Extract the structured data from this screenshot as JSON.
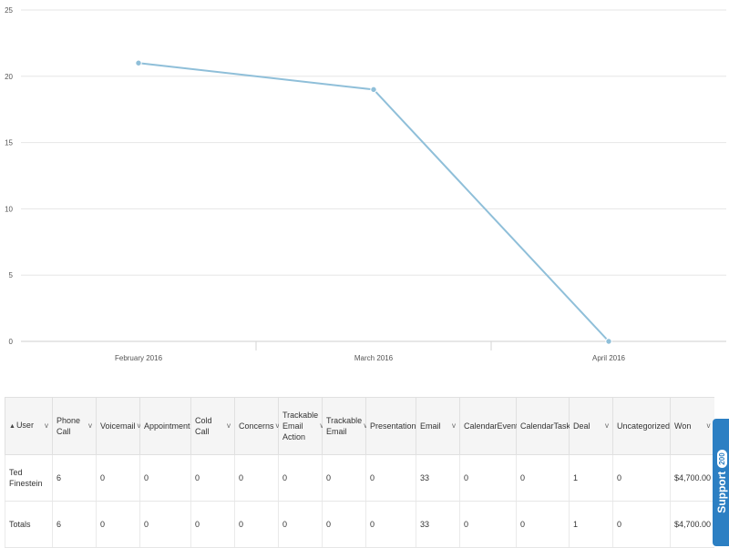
{
  "chart_data": {
    "type": "line",
    "categories": [
      "February 2016",
      "March 2016",
      "April 2016"
    ],
    "series": [
      {
        "values": [
          21,
          19,
          0
        ],
        "color": "#8fbfd9"
      }
    ],
    "yticks": [
      "0",
      "5",
      "10",
      "15",
      "20",
      "25"
    ],
    "ylim": [
      0,
      25
    ],
    "grid": true,
    "title": "",
    "xlabel": "",
    "ylabel": ""
  },
  "table": {
    "headers": [
      "User",
      "Phone Call",
      "Voicemail",
      "Appointment",
      "Cold Call",
      "Concerns",
      "Trackable Email Action",
      "Trackable Email",
      "Presentation",
      "Email",
      "CalendarEvent",
      "CalendarTask",
      "Deal",
      "Uncategorized",
      "Won"
    ],
    "rows": [
      [
        "Ted Finestein",
        "6",
        "0",
        "0",
        "0",
        "0",
        "0",
        "0",
        "0",
        "33",
        "0",
        "0",
        "1",
        "0",
        "$4,700.00"
      ],
      [
        "Totals",
        "6",
        "0",
        "0",
        "0",
        "0",
        "0",
        "0",
        "0",
        "33",
        "0",
        "0",
        "1",
        "0",
        "$4,700.00"
      ]
    ]
  },
  "support": {
    "label": "Support",
    "badge": "200"
  }
}
